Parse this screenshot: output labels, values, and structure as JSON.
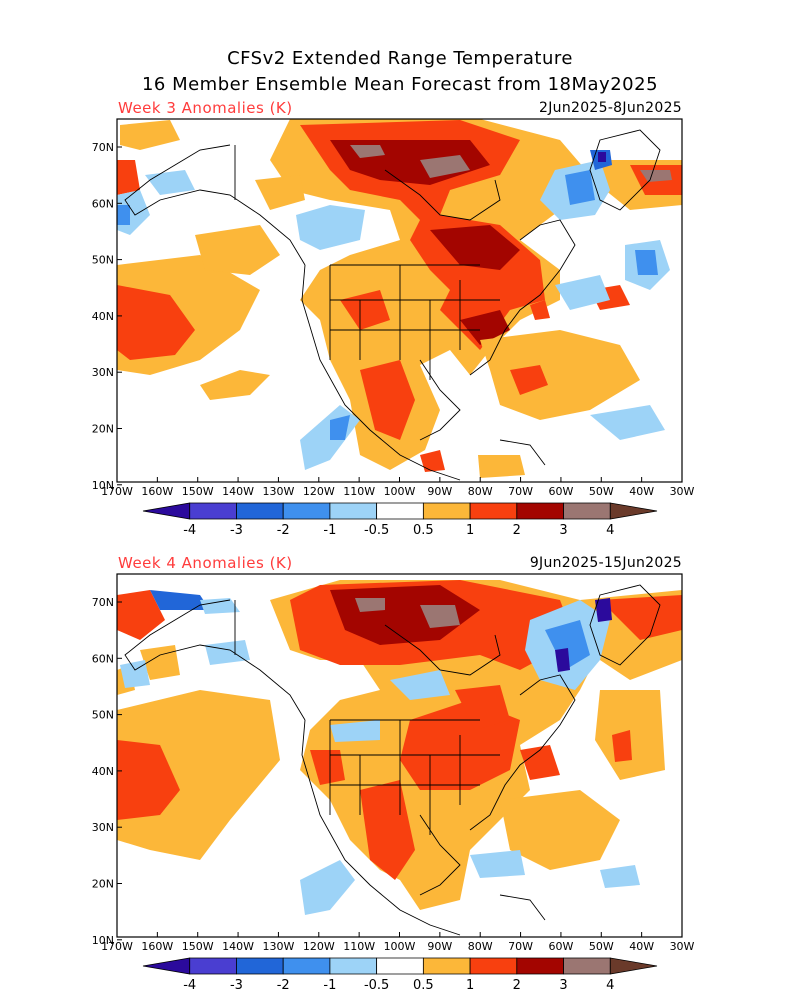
{
  "title_line1": "CFSv2 Extended Range Temperature",
  "title_line2": "16 Member Ensemble Mean Forecast from 18May2025",
  "panels": [
    {
      "label": "Week 3 Anomalies (K)",
      "dates": "2Jun2025-8Jun2025"
    },
    {
      "label": "Week 4 Anomalies (K)",
      "dates": "9Jun2025-15Jun2025"
    }
  ],
  "lat_ticks": [
    "70N",
    "60N",
    "50N",
    "40N",
    "30N",
    "20N",
    "10N"
  ],
  "lon_ticks": [
    "170W",
    "160W",
    "150W",
    "140W",
    "130W",
    "120W",
    "110W",
    "100W",
    "90W",
    "80W",
    "70W",
    "60W",
    "50W",
    "40W",
    "30W"
  ],
  "colorbar": {
    "labels": [
      "-4",
      "-3",
      "-2",
      "-1",
      "-0.5",
      "0.5",
      "1",
      "2",
      "3",
      "4"
    ],
    "colors": [
      "#2b0a9c",
      "#4a3ed1",
      "#2166d8",
      "#3f90ee",
      "#9dd3f7",
      "#ffffff",
      "#fcb739",
      "#f8400f",
      "#a30500",
      "#9b7672",
      "#6a3a2a"
    ]
  },
  "palette": {
    "pos1": "#fcb739",
    "pos2": "#f8400f",
    "pos3": "#a30500",
    "pos4": "#9b7672",
    "neg1": "#9dd3f7",
    "neg2": "#3f90ee",
    "neg3": "#2166d8",
    "neg4": "#2b0a9c"
  }
}
